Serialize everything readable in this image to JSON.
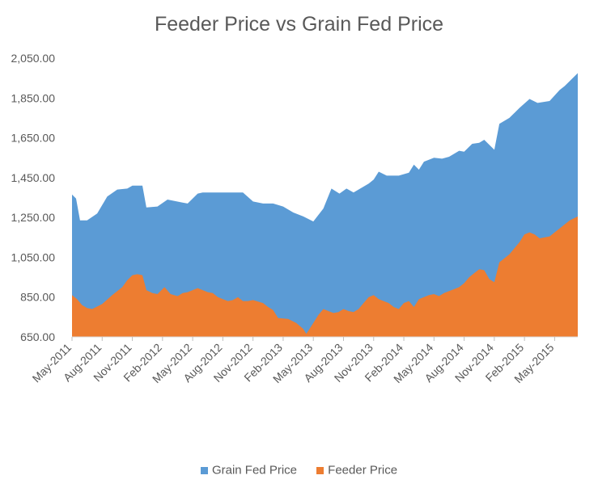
{
  "chart_data": {
    "type": "area",
    "title": "Feeder Price vs Grain Fed Price",
    "xlabel": "",
    "ylabel": "",
    "ylim": [
      650,
      2050
    ],
    "yticks": [
      "650.00",
      "850.00",
      "1,050.00",
      "1,250.00",
      "1,450.00",
      "1,650.00",
      "1,850.00",
      "2,050.00"
    ],
    "ytick_values": [
      650,
      850,
      1050,
      1250,
      1450,
      1650,
      1850,
      2050
    ],
    "xticks": [
      "May-2011",
      "Aug-2011",
      "Nov-2011",
      "Feb-2012",
      "May-2012",
      "Aug-2012",
      "Nov-2012",
      "Feb-2013",
      "May-2013",
      "Aug-2013",
      "Nov-2013",
      "Feb-2014",
      "May-2014",
      "Aug-2014",
      "Nov-2014",
      "Feb-2015",
      "May-2015"
    ],
    "xtick_values": [
      0,
      3,
      6,
      9,
      12,
      15,
      18,
      21,
      24,
      27,
      30,
      33,
      36,
      39,
      42,
      45,
      48
    ],
    "x_start": "May-2011",
    "x_end": "Sep-2015",
    "legend_position": "bottom",
    "series": [
      {
        "name": "Grain Fed Price",
        "color": "#5B9BD5",
        "points": [
          [
            0,
            1365
          ],
          [
            0.4,
            1345
          ],
          [
            0.8,
            1235
          ],
          [
            1.5,
            1235
          ],
          [
            2.5,
            1270
          ],
          [
            3.5,
            1355
          ],
          [
            4.5,
            1390
          ],
          [
            5.5,
            1395
          ],
          [
            6,
            1410
          ],
          [
            7,
            1410
          ],
          [
            7.4,
            1300
          ],
          [
            8.5,
            1305
          ],
          [
            9.5,
            1340
          ],
          [
            11,
            1325
          ],
          [
            11.5,
            1320
          ],
          [
            12.5,
            1370
          ],
          [
            13,
            1375
          ],
          [
            14,
            1375
          ],
          [
            15,
            1375
          ],
          [
            17,
            1375
          ],
          [
            18,
            1330
          ],
          [
            19,
            1320
          ],
          [
            20,
            1320
          ],
          [
            21,
            1305
          ],
          [
            22,
            1275
          ],
          [
            23,
            1255
          ],
          [
            24,
            1230
          ],
          [
            25,
            1295
          ],
          [
            25.8,
            1395
          ],
          [
            26.6,
            1370
          ],
          [
            27.3,
            1395
          ],
          [
            28,
            1375
          ],
          [
            29.5,
            1420
          ],
          [
            30,
            1440
          ],
          [
            30.5,
            1480
          ],
          [
            31.3,
            1460
          ],
          [
            32.5,
            1460
          ],
          [
            33.5,
            1475
          ],
          [
            34,
            1515
          ],
          [
            34.5,
            1490
          ],
          [
            35,
            1530
          ],
          [
            36,
            1550
          ],
          [
            36.8,
            1545
          ],
          [
            37.5,
            1555
          ],
          [
            38.5,
            1585
          ],
          [
            39,
            1580
          ],
          [
            39.8,
            1620
          ],
          [
            40.5,
            1625
          ],
          [
            41,
            1640
          ],
          [
            42,
            1590
          ],
          [
            42.5,
            1720
          ],
          [
            43.5,
            1750
          ],
          [
            44.5,
            1800
          ],
          [
            45.5,
            1845
          ],
          [
            46.3,
            1825
          ],
          [
            47.5,
            1835
          ],
          [
            48.5,
            1890
          ],
          [
            49,
            1910
          ],
          [
            50.3,
            1975
          ]
        ]
      },
      {
        "name": "Feeder Price",
        "color": "#ED7D31",
        "points": [
          [
            0,
            860
          ],
          [
            0.5,
            840
          ],
          [
            1,
            810
          ],
          [
            1.5,
            795
          ],
          [
            2,
            790
          ],
          [
            3,
            815
          ],
          [
            4,
            860
          ],
          [
            5,
            900
          ],
          [
            5.5,
            935
          ],
          [
            6,
            960
          ],
          [
            6.5,
            965
          ],
          [
            7,
            960
          ],
          [
            7.4,
            885
          ],
          [
            8,
            870
          ],
          [
            8.5,
            865
          ],
          [
            9.2,
            900
          ],
          [
            9.8,
            865
          ],
          [
            10.5,
            855
          ],
          [
            11,
            870
          ],
          [
            11.5,
            875
          ],
          [
            12,
            885
          ],
          [
            12.5,
            895
          ],
          [
            13,
            885
          ],
          [
            13.5,
            875
          ],
          [
            14,
            870
          ],
          [
            14.5,
            850
          ],
          [
            15,
            840
          ],
          [
            15.5,
            830
          ],
          [
            16,
            835
          ],
          [
            16.5,
            850
          ],
          [
            17,
            830
          ],
          [
            17.5,
            830
          ],
          [
            18,
            835
          ],
          [
            19,
            820
          ],
          [
            19.5,
            800
          ],
          [
            20,
            785
          ],
          [
            20.5,
            745
          ],
          [
            21.5,
            740
          ],
          [
            22.3,
            720
          ],
          [
            23,
            690
          ],
          [
            23.3,
            665
          ],
          [
            24,
            720
          ],
          [
            24.5,
            760
          ],
          [
            25,
            790
          ],
          [
            25.5,
            780
          ],
          [
            26,
            770
          ],
          [
            26.5,
            775
          ],
          [
            27,
            790
          ],
          [
            27.5,
            780
          ],
          [
            28,
            775
          ],
          [
            28.5,
            790
          ],
          [
            29,
            820
          ],
          [
            29.5,
            850
          ],
          [
            30,
            860
          ],
          [
            30.5,
            840
          ],
          [
            31.5,
            820
          ],
          [
            32,
            800
          ],
          [
            32.5,
            790
          ],
          [
            33,
            820
          ],
          [
            33.5,
            830
          ],
          [
            34,
            800
          ],
          [
            34.5,
            840
          ],
          [
            35,
            850
          ],
          [
            35.5,
            860
          ],
          [
            36,
            865
          ],
          [
            36.5,
            855
          ],
          [
            37,
            870
          ],
          [
            37.5,
            880
          ],
          [
            38,
            890
          ],
          [
            38.5,
            900
          ],
          [
            39,
            920
          ],
          [
            39.5,
            950
          ],
          [
            40,
            970
          ],
          [
            40.5,
            990
          ],
          [
            41,
            985
          ],
          [
            41.5,
            940
          ],
          [
            42,
            925
          ],
          [
            42.5,
            1025
          ],
          [
            43,
            1045
          ],
          [
            43.5,
            1065
          ],
          [
            44,
            1095
          ],
          [
            44.5,
            1125
          ],
          [
            45,
            1165
          ],
          [
            45.5,
            1175
          ],
          [
            46,
            1165
          ],
          [
            46.5,
            1145
          ],
          [
            47,
            1150
          ],
          [
            47.5,
            1155
          ],
          [
            48,
            1175
          ],
          [
            48.5,
            1195
          ],
          [
            49,
            1215
          ],
          [
            49.5,
            1235
          ],
          [
            50.3,
            1255
          ]
        ]
      }
    ]
  }
}
